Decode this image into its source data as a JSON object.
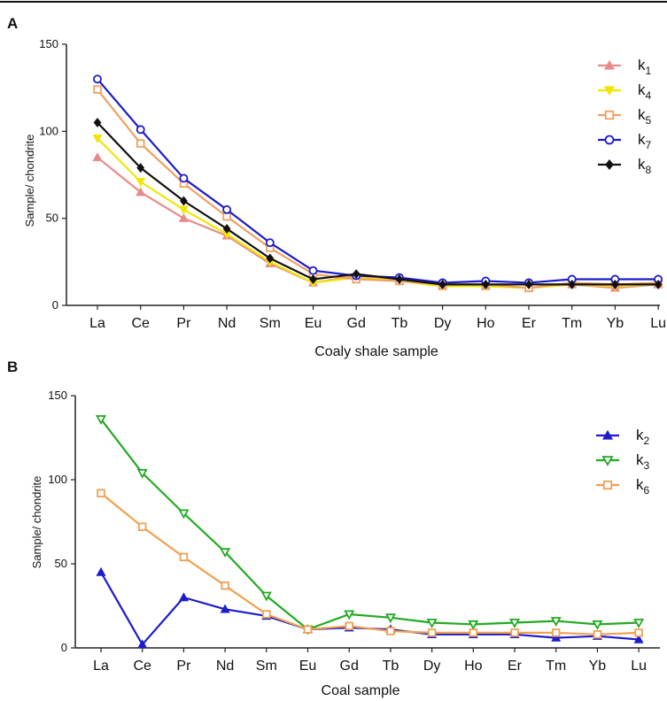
{
  "chart_data": [
    {
      "panel": "A",
      "type": "line",
      "categories": [
        "La",
        "Ce",
        "Pr",
        "Nd",
        "Sm",
        "Eu",
        "Gd",
        "Tb",
        "Dy",
        "Ho",
        "Er",
        "Tm",
        "Yb",
        "Lu"
      ],
      "xlabel": "Coaly shale sample",
      "ylabel": "Sample/ chondrite",
      "ylim": [
        0,
        150
      ],
      "yticks": [
        0,
        50,
        100,
        150
      ],
      "legend_position": "top-right",
      "series": [
        {
          "name": "k",
          "sub": "1",
          "color": "#e88a8a",
          "marker": "triangle-up",
          "values": [
            85,
            65,
            50,
            40,
            24,
            13,
            17,
            14,
            11,
            11,
            10,
            12,
            10,
            12
          ]
        },
        {
          "name": "k",
          "sub": "4",
          "color": "#f2e600",
          "marker": "triangle-down",
          "values": [
            96,
            71,
            55,
            41,
            25,
            13,
            16,
            14,
            11,
            11,
            10,
            12,
            11,
            12
          ]
        },
        {
          "name": "k",
          "sub": "5",
          "color": "#eea060",
          "marker": "square-open",
          "values": [
            124,
            93,
            70,
            51,
            33,
            18,
            15,
            14,
            12,
            12,
            10,
            13,
            12,
            13
          ]
        },
        {
          "name": "k",
          "sub": "7",
          "color": "#1c1ccc",
          "marker": "circle-open",
          "values": [
            130,
            101,
            73,
            55,
            36,
            20,
            17,
            16,
            13,
            14,
            13,
            15,
            15,
            15
          ]
        },
        {
          "name": "k",
          "sub": "8",
          "color": "#111111",
          "marker": "diamond",
          "values": [
            105,
            79,
            60,
            44,
            27,
            15,
            18,
            15,
            12,
            12,
            12,
            12,
            12,
            12
          ]
        }
      ]
    },
    {
      "panel": "B",
      "type": "line",
      "categories": [
        "La",
        "Ce",
        "Pr",
        "Nd",
        "Sm",
        "Eu",
        "Gd",
        "Tb",
        "Dy",
        "Ho",
        "Er",
        "Tm",
        "Yb",
        "Lu"
      ],
      "xlabel": "Coal sample",
      "ylabel": "Sample/ chondrite",
      "ylim": [
        0,
        150
      ],
      "yticks": [
        0,
        50,
        100,
        150
      ],
      "legend_position": "top-right",
      "series": [
        {
          "name": "k",
          "sub": "2",
          "color": "#1c1ccc",
          "marker": "triangle-up",
          "values": [
            45,
            2,
            30,
            23,
            19,
            11,
            12,
            11,
            8,
            8,
            8,
            6,
            7,
            5
          ]
        },
        {
          "name": "k",
          "sub": "3",
          "color": "#22aa22",
          "marker": "triangle-down-open",
          "values": [
            136,
            104,
            80,
            57,
            31,
            11,
            20,
            18,
            15,
            14,
            15,
            16,
            14,
            15
          ]
        },
        {
          "name": "k",
          "sub": "6",
          "color": "#f0a050",
          "marker": "square-open",
          "values": [
            92,
            72,
            54,
            37,
            20,
            11,
            13,
            10,
            9,
            9,
            9,
            9,
            8,
            9
          ]
        }
      ]
    }
  ]
}
